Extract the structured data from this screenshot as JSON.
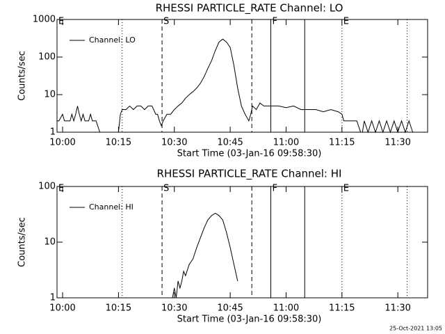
{
  "chart_data": [
    {
      "type": "line",
      "title": "RHESSI PARTICLE_RATE Channel: LO",
      "xlabel": "Start Time (03-Jan-16 09:58:30)",
      "ylabel": "Counts/sec",
      "log_y": true,
      "ylim": [
        1,
        1000
      ],
      "yticks": [
        1,
        10,
        100,
        1000
      ],
      "xlim": [
        -1.5,
        98
      ],
      "xticks": [
        {
          "value": 0,
          "label": "10:00"
        },
        {
          "value": 15,
          "label": "10:15"
        },
        {
          "value": 30,
          "label": "10:30"
        },
        {
          "value": 45,
          "label": "10:45"
        },
        {
          "value": 60,
          "label": "11:00"
        },
        {
          "value": 75,
          "label": "11:15"
        },
        {
          "value": 90,
          "label": "11:30"
        }
      ],
      "legend": "upper left",
      "markers": [
        {
          "x": 16,
          "style": "dotted"
        },
        {
          "x": 26.7,
          "style": "dashed"
        },
        {
          "x": 50.8,
          "style": "dashed"
        },
        {
          "x": 55.9,
          "style": "solid"
        },
        {
          "x": 65,
          "style": "solid"
        },
        {
          "x": 75,
          "style": "dotted"
        },
        {
          "x": 92.5,
          "style": "dotted"
        }
      ],
      "annotations": [
        {
          "text": "E",
          "x": -1.5
        },
        {
          "text": "S",
          "x": 26.7
        },
        {
          "text": "F",
          "x": 55.9
        },
        {
          "text": "E",
          "x": 75
        }
      ],
      "series": [
        {
          "name": "Channel: LO",
          "color": "#000000",
          "x": [
            -1.5,
            -1,
            0,
            0.5,
            1,
            2,
            2.5,
            3,
            3.5,
            4,
            4.5,
            5,
            5.5,
            6,
            7,
            7.5,
            8,
            9,
            10,
            10.5,
            11,
            12,
            13,
            14,
            14.5,
            15,
            15.5,
            16,
            17,
            18,
            19,
            20,
            21,
            22,
            23,
            24,
            25,
            25.5,
            26,
            26.5,
            27,
            28,
            29,
            30,
            31,
            32,
            33,
            34,
            35,
            36,
            37,
            38,
            39,
            40,
            41,
            42,
            43,
            44,
            45,
            46,
            47,
            48,
            49,
            50,
            50.5,
            51,
            52,
            53,
            54,
            55,
            56,
            58,
            60,
            62,
            64,
            65,
            66,
            68,
            70,
            72,
            74,
            75,
            75.5,
            76,
            77,
            78,
            79,
            80,
            80.5,
            81,
            82,
            83,
            84,
            85,
            86,
            87,
            88,
            89,
            90,
            91,
            92,
            93,
            94
          ],
          "values": [
            2,
            2,
            3,
            2,
            2,
            2,
            3,
            2,
            3,
            5,
            3,
            2,
            3,
            2,
            2,
            3,
            2,
            2,
            1,
            1,
            1,
            1,
            1,
            1,
            1,
            1,
            3,
            4,
            4,
            5,
            4,
            5,
            5,
            4,
            5,
            5,
            3,
            3,
            2,
            1.5,
            2,
            3,
            3,
            4,
            5,
            6,
            8,
            10,
            12,
            15,
            20,
            30,
            50,
            80,
            150,
            250,
            300,
            250,
            180,
            60,
            15,
            5,
            3,
            2,
            3,
            5,
            4,
            6,
            5,
            5,
            5,
            5,
            4.5,
            5,
            4,
            4,
            4,
            4,
            3.5,
            4,
            3.5,
            3,
            2,
            2,
            2,
            2,
            2,
            1,
            1,
            2,
            1,
            2,
            1,
            2,
            1,
            2,
            1,
            2,
            1,
            2,
            1,
            2,
            1
          ]
        }
      ]
    },
    {
      "type": "line",
      "title": "RHESSI PARTICLE_RATE Channel: HI",
      "xlabel": "Start Time (03-Jan-16 09:58:30)",
      "ylabel": "Counts/sec",
      "log_y": true,
      "ylim": [
        1,
        100
      ],
      "yticks": [
        1,
        10,
        100
      ],
      "xlim": [
        -1.5,
        98
      ],
      "xticks": [
        {
          "value": 0,
          "label": "10:00"
        },
        {
          "value": 15,
          "label": "10:15"
        },
        {
          "value": 30,
          "label": "10:30"
        },
        {
          "value": 45,
          "label": "10:45"
        },
        {
          "value": 60,
          "label": "11:00"
        },
        {
          "value": 75,
          "label": "11:15"
        },
        {
          "value": 90,
          "label": "11:30"
        }
      ],
      "legend": "upper left",
      "markers": [
        {
          "x": 16,
          "style": "dotted"
        },
        {
          "x": 26.7,
          "style": "dashed"
        },
        {
          "x": 50.8,
          "style": "dashed"
        },
        {
          "x": 55.9,
          "style": "solid"
        },
        {
          "x": 65,
          "style": "solid"
        },
        {
          "x": 75,
          "style": "dotted"
        },
        {
          "x": 92.5,
          "style": "dotted"
        }
      ],
      "annotations": [
        {
          "text": "E",
          "x": -1.5
        },
        {
          "text": "S",
          "x": 26.7
        },
        {
          "text": "F",
          "x": 55.9
        },
        {
          "text": "E",
          "x": 75
        }
      ],
      "series": [
        {
          "name": "Channel: HI",
          "color": "#000000",
          "x": [
            29.5,
            30,
            30.5,
            31,
            31.5,
            32,
            32.5,
            33,
            34,
            35,
            36,
            37,
            38,
            39,
            40,
            41,
            42,
            43,
            44,
            45,
            46,
            47
          ],
          "values": [
            1,
            1.5,
            1,
            2,
            1.5,
            2,
            3,
            2.5,
            4,
            5,
            8,
            12,
            18,
            25,
            30,
            33,
            30,
            25,
            15,
            8,
            4,
            2
          ]
        }
      ]
    }
  ],
  "footer": "25-Oct-2021 13:05"
}
